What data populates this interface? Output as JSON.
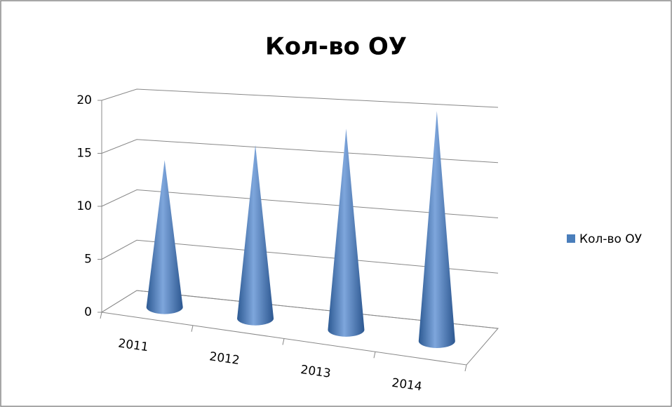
{
  "chart_data": {
    "type": "cone3d",
    "title": "Кол-во ОУ",
    "categories": [
      "2011",
      "2012",
      "2013",
      "2014"
    ],
    "series": [
      {
        "name": "Кол-во ОУ",
        "color": "#4a7ebb",
        "values": [
          14,
          16,
          18,
          20
        ]
      }
    ],
    "ylim": [
      0,
      20
    ],
    "yticks": [
      0,
      5,
      10,
      15,
      20
    ],
    "grid": true,
    "legend": "right"
  }
}
